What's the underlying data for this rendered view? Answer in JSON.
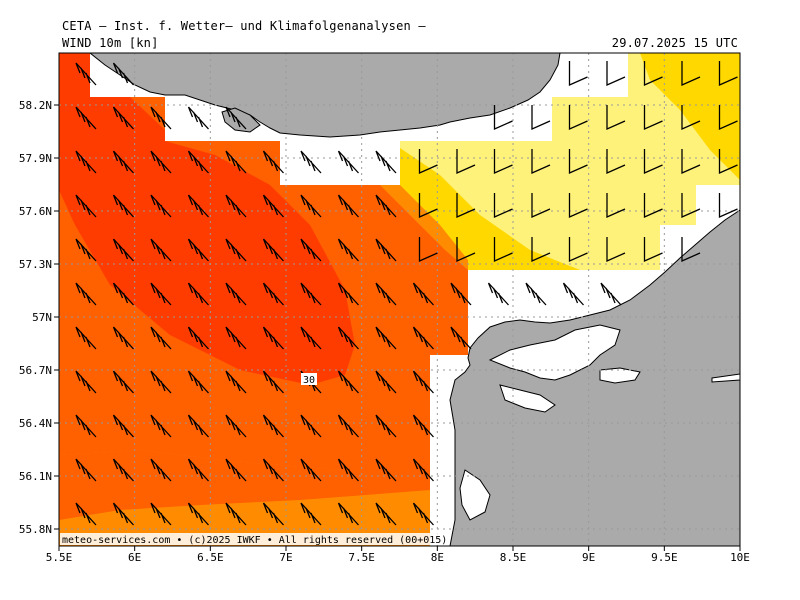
{
  "header": {
    "title": "CETA — Inst. f. Wetter— und Klimafolgenanalysen —",
    "subtitle": "WIND 10m [kn]",
    "valid_time": "29.07.2025 15 UTC"
  },
  "axes": {
    "lat_labels": [
      "55.8N",
      "56.1N",
      "56.4N",
      "56.7N",
      "57N",
      "57.3N",
      "57.6N",
      "57.9N",
      "58.2N"
    ],
    "lat_values": [
      55.8,
      56.1,
      56.4,
      56.7,
      57.0,
      57.3,
      57.6,
      57.9,
      58.2
    ],
    "lon_labels": [
      "5.5E",
      "6E",
      "6.5E",
      "7E",
      "7.5E",
      "8E",
      "8.5E",
      "9E",
      "9.5E",
      "10E"
    ],
    "lon_values": [
      5.5,
      6.0,
      6.5,
      7.0,
      7.5,
      8.0,
      8.5,
      9.0,
      9.5,
      10.0
    ],
    "lon_range": [
      5.5,
      10.0
    ],
    "lat_range": [
      55.72,
      58.5
    ]
  },
  "contour_label": "30",
  "footer": "meteo-services.com • (c)2025 IWKF • All rights reserved (00+015)",
  "colors": {
    "land": "#aaaaaa",
    "band_15_20": "#fff27a",
    "band_20_25": "#ffd800",
    "band_25_28": "#ff8c00",
    "band_28_30": "#ff6000",
    "band_30_plus": "#ff3c00",
    "gridline": "#999999"
  }
}
